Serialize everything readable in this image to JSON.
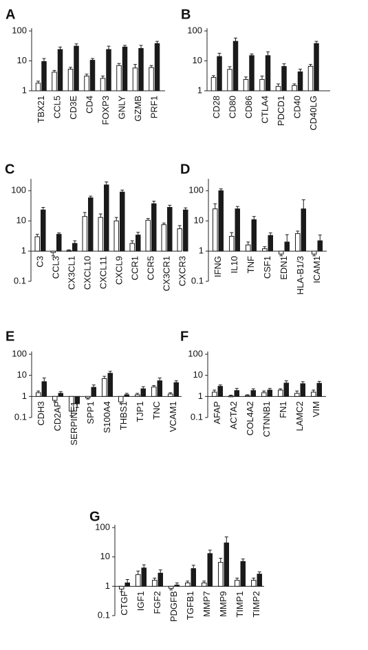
{
  "chart_data": [
    {
      "panel": "A",
      "type": "bar",
      "yscale": "log",
      "yticks": [
        "1",
        "10",
        "100"
      ],
      "ylim": [
        1,
        100
      ],
      "categories": [
        "TBX21",
        "CCL5",
        "CD3E",
        "CD4",
        "FOXP3",
        "GNLY",
        "GZMB",
        "PRF1"
      ],
      "series": [
        {
          "values": [
            1.8,
            4.2,
            5.3,
            3.1,
            2.6,
            7.0,
            5.8,
            6.0
          ],
          "errors": [
            0.3,
            0.6,
            0.8,
            0.5,
            0.5,
            1.2,
            1.8,
            1.0
          ]
        },
        {
          "values": [
            9.5,
            24,
            31,
            10.5,
            24,
            29,
            26,
            38
          ],
          "errors": [
            2.5,
            5,
            6,
            1.5,
            7,
            4,
            7,
            7
          ]
        }
      ]
    },
    {
      "panel": "B",
      "type": "bar",
      "yscale": "log",
      "yticks": [
        "1",
        "10",
        "100"
      ],
      "ylim": [
        1,
        100
      ],
      "categories": [
        "CD28",
        "CD80",
        "CD86",
        "CTLA4",
        "PDCD1",
        "CD40",
        "CD40LG"
      ],
      "series": [
        {
          "values": [
            2.8,
            5.2,
            2.4,
            2.4,
            1.4,
            1.5,
            6.6
          ],
          "errors": [
            0.4,
            1.2,
            0.5,
            0.7,
            0.3,
            0.2,
            1.0
          ]
        },
        {
          "values": [
            14,
            45,
            15,
            15,
            6.5,
            4.3,
            38
          ],
          "errors": [
            4,
            13,
            2,
            5,
            1.5,
            1.0,
            7
          ]
        }
      ]
    },
    {
      "panel": "C",
      "type": "bar",
      "yscale": "log",
      "yticks": [
        "0.1",
        "1",
        "10",
        "100"
      ],
      "ylim": [
        0.1,
        200
      ],
      "categories": [
        "C3",
        "CCL3",
        "CX3CL1",
        "CXCL10",
        "CXCL11",
        "CXCL9",
        "CCR1",
        "CCR5",
        "CX3CR1",
        "CXCR3"
      ],
      "series": [
        {
          "values": [
            3.0,
            0.9,
            1.05,
            14,
            13,
            10,
            1.8,
            10.5,
            7.5,
            5.5
          ],
          "errors": [
            0.6,
            0.2,
            0.05,
            5,
            4,
            3,
            0.4,
            1.5,
            1.0,
            1.5
          ]
        },
        {
          "values": [
            23,
            3.6,
            1.8,
            58,
            155,
            90,
            3.4,
            37,
            28,
            23
          ],
          "errors": [
            5,
            0.4,
            0.4,
            8,
            40,
            15,
            0.8,
            8,
            5,
            4
          ]
        }
      ]
    },
    {
      "panel": "D",
      "type": "bar",
      "yscale": "log",
      "yticks": [
        "0.1",
        "1",
        "10",
        "100"
      ],
      "ylim": [
        0.1,
        200
      ],
      "categories": [
        "IFNG",
        "IL10",
        "TNF",
        "CSF1",
        "EDN1",
        "HLA-B1/3",
        "ICAM1"
      ],
      "series": [
        {
          "values": [
            25,
            3.1,
            1.6,
            1.2,
            0.8,
            3.8,
            0.8
          ],
          "errors": [
            12,
            1.0,
            0.4,
            0.2,
            0.1,
            0.8,
            0.1
          ]
        },
        {
          "values": [
            100,
            25,
            11,
            3.3,
            2.0,
            25,
            2.2
          ],
          "errors": [
            15,
            5,
            3,
            0.7,
            1.5,
            25,
            1.2
          ]
        }
      ]
    },
    {
      "panel": "E",
      "type": "bar",
      "yscale": "log",
      "yticks": [
        "0.1",
        "1",
        "10",
        "100"
      ],
      "ylim": [
        0.1,
        100
      ],
      "categories": [
        "CDH3",
        "CD2AP",
        "SERPINE1",
        "SPP1",
        "S100A4",
        "THBS1",
        "TJP1",
        "TNC",
        "VCAM1"
      ],
      "series": [
        {
          "values": [
            1.5,
            0.65,
            0.2,
            0.85,
            7.0,
            0.55,
            1.2,
            2.8,
            1.3
          ],
          "errors": [
            0.3,
            0.1,
            0.08,
            0.1,
            2.0,
            0.1,
            0.2,
            0.5,
            0.2
          ]
        },
        {
          "values": [
            5.0,
            1.4,
            0.45,
            2.7,
            12.5,
            1.2,
            2.3,
            5.5,
            4.5
          ],
          "errors": [
            2.5,
            0.3,
            0.15,
            0.8,
            3.0,
            0.2,
            0.6,
            2.0,
            1.0
          ]
        }
      ]
    },
    {
      "panel": "F",
      "type": "bar",
      "yscale": "log",
      "yticks": [
        "0.1",
        "1",
        "10",
        "100"
      ],
      "ylim": [
        0.1,
        100
      ],
      "categories": [
        "AFAP",
        "ACTA2",
        "COL4A2",
        "CTNNB1",
        "FN1",
        "LAMC2",
        "VIM"
      ],
      "series": [
        {
          "values": [
            1.6,
            1.05,
            1.1,
            1.5,
            2.0,
            1.4,
            1.6
          ],
          "errors": [
            0.4,
            0.1,
            0.1,
            0.3,
            0.3,
            0.4,
            0.4
          ]
        },
        {
          "values": [
            3.0,
            1.9,
            1.9,
            2.0,
            4.3,
            4.0,
            4.2
          ],
          "errors": [
            0.5,
            0.5,
            0.4,
            0.4,
            1.2,
            1.0,
            1.0
          ]
        }
      ]
    },
    {
      "panel": "G",
      "type": "bar",
      "yscale": "log",
      "yticks": [
        "0.1",
        "1",
        "10",
        "100"
      ],
      "ylim": [
        0.1,
        100
      ],
      "categories": [
        "CTGF",
        "IGF1",
        "FGF2",
        "PDGFB",
        "TGFB1",
        "MMP7",
        "MMP9",
        "TIMP1",
        "TIMP2"
      ],
      "series": [
        {
          "values": [
            0.8,
            2.5,
            1.6,
            0.85,
            1.3,
            1.3,
            6.5,
            1.6,
            1.6
          ],
          "errors": [
            0.15,
            0.8,
            0.3,
            0.1,
            0.2,
            0.2,
            2.5,
            0.3,
            0.3
          ]
        },
        {
          "values": [
            1.3,
            4.2,
            2.8,
            1.1,
            4.0,
            13,
            30,
            7.0,
            2.6
          ],
          "errors": [
            0.4,
            1.2,
            0.8,
            0.2,
            1.2,
            4,
            18,
            1.5,
            0.5
          ]
        }
      ]
    }
  ]
}
